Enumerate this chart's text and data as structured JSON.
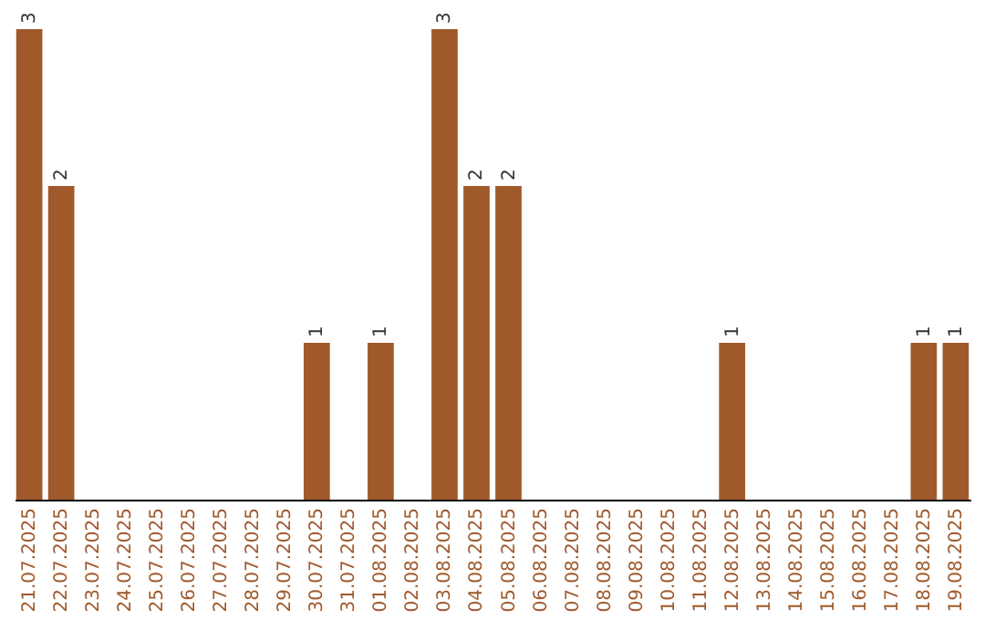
{
  "chart_data": {
    "type": "bar",
    "categories": [
      "21.07.2025",
      "22.07.2025",
      "23.07.2025",
      "24.07.2025",
      "25.07.2025",
      "26.07.2025",
      "27.07.2025",
      "28.07.2025",
      "29.07.2025",
      "30.07.2025",
      "31.07.2025",
      "01.08.2025",
      "02.08.2025",
      "03.08.2025",
      "04.08.2025",
      "05.08.2025",
      "06.08.2025",
      "07.08.2025",
      "08.08.2025",
      "09.08.2025",
      "10.08.2025",
      "11.08.2025",
      "12.08.2025",
      "13.08.2025",
      "14.08.2025",
      "15.08.2025",
      "16.08.2025",
      "17.08.2025",
      "18.08.2025",
      "19.08.2025"
    ],
    "values": [
      3,
      2,
      0,
      0,
      0,
      0,
      0,
      0,
      0,
      1,
      0,
      1,
      0,
      3,
      2,
      2,
      0,
      0,
      0,
      0,
      0,
      0,
      1,
      0,
      0,
      0,
      0,
      0,
      1,
      1
    ],
    "value_labels": [
      "3",
      "2",
      null,
      null,
      null,
      null,
      null,
      null,
      null,
      "1",
      null,
      "1",
      null,
      "3",
      "2",
      "2",
      null,
      null,
      null,
      null,
      null,
      null,
      "1",
      null,
      null,
      null,
      null,
      null,
      "1",
      "1"
    ],
    "color": "#a0592a",
    "grid": false
  }
}
